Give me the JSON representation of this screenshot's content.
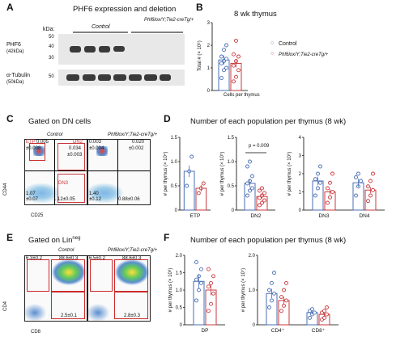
{
  "panels": {
    "A": {
      "letter": "A",
      "title": "PHF6 expression and deletion",
      "kda_label": "kDa:",
      "kda_ticks": [
        "50",
        "40",
        "30",
        "50"
      ],
      "group_control": "Control",
      "group_ko": "Phf6lox/Y;Tie2-creTg/+",
      "row1_label": "PHF6",
      "row1_sub": "(42kDa)",
      "row2_label": "α-Tubulin",
      "row2_sub": "(50kDa)"
    },
    "B": {
      "letter": "B",
      "title": "8 wk thymus",
      "ylabel": "Total # (× 10⁸)",
      "xlabel": "Cells per thymus",
      "legend_control": "Control",
      "legend_ko": "Phf6lox/Y;Tie2-creTg/+",
      "yticks": [
        "0",
        "1",
        "2",
        "3"
      ]
    },
    "C": {
      "letter": "C",
      "title": "Gated on DN cells",
      "ylabel": "CD44",
      "xlabel": "CD25",
      "sub_control": "Control",
      "sub_ko": "Phf6lox/Y;Tie2-creTg/+",
      "ticks": [
        "0",
        "10³",
        "10⁴",
        "10⁵"
      ],
      "quadrants": {
        "ETP": "ETP",
        "DN2": "DN2",
        "DN3": "DN3",
        "control": {
          "q1": "0.005",
          "q1b": "±0.008",
          "q2": "0.034",
          "q2b": "±0.003",
          "q3": "1.07",
          "q3b": "±0.07",
          "q4": "1.12±0.05"
        },
        "ko": {
          "q1": "0.003",
          "q1b": "±0.004",
          "q2": "0.020",
          "q2b": "±0.002",
          "q3": "1.40",
          "q3b": "±0.12",
          "q4": "0.88±0.06"
        }
      }
    },
    "D": {
      "letter": "D",
      "title": "Number of each population per thymus (8 wk)",
      "pvalue": "p = 0.009",
      "subplots": [
        {
          "ylabel": "# per thymus (× 10⁴)",
          "yticks": [
            "0",
            "0.5",
            "1.0",
            "1.5"
          ],
          "xlabels": [
            "ETP"
          ]
        },
        {
          "ylabel": "# per thymus (× 10⁵)",
          "yticks": [
            "0",
            "0.5",
            "1.0",
            "1.5"
          ],
          "xlabels": [
            "DN2"
          ]
        },
        {
          "ylabel": "# per thymus (× 10⁶)",
          "yticks": [
            "0",
            "1",
            "2",
            "3",
            "4"
          ],
          "xlabels": [
            "DN3",
            "DN4"
          ]
        }
      ]
    },
    "E": {
      "letter": "E",
      "title": "Gated on Lin",
      "title_sup": "neg",
      "ylabel": "CD4",
      "xlabel": "CD8",
      "sub_control": "Control",
      "sub_ko": "Phf6lox/Y;Tie2-creTg/+",
      "ticks": [
        "0",
        "10³",
        "10⁴",
        "10⁵"
      ],
      "control": {
        "tl": "6.3±0.2",
        "tr": "88.6±0.3",
        "br": "2.5±0.1"
      },
      "ko": {
        "tl": "6.5±0.2",
        "tr": "88.6±0.3",
        "br": "2.8±0.3"
      }
    },
    "F": {
      "letter": "F",
      "title": "Number of each population per thymus (8 wk)",
      "subplots": [
        {
          "ylabel": "# per thymus (× 10⁸)",
          "yticks": [
            "0",
            "0.5",
            "1.0",
            "1.5",
            "2.0"
          ],
          "xlabels": [
            "DP"
          ]
        },
        {
          "ylabel": "# per thymus (× 10⁷)",
          "yticks": [
            "0",
            "1.0",
            "2.0"
          ],
          "xlabels": [
            "CD4⁺",
            "CD8⁺"
          ]
        }
      ]
    }
  },
  "colors": {
    "control": "#4a6fb5",
    "ko": "#c8383c"
  },
  "chart_data": [
    {
      "type": "bar",
      "panel": "B",
      "categories": [
        "Cells per thymus"
      ],
      "series": [
        {
          "name": "Control",
          "values": [
            1.35
          ],
          "points": [
            0.55,
            0.9,
            1.0,
            1.2,
            1.3,
            1.4,
            1.5,
            1.8,
            2.0
          ]
        },
        {
          "name": "Phf6lox/Y;Tie2-creTg/+",
          "values": [
            1.2
          ],
          "points": [
            0.4,
            0.6,
            0.9,
            1.1,
            1.3,
            1.5,
            1.6,
            2.2
          ]
        }
      ],
      "ylim": [
        0,
        3
      ]
    },
    {
      "type": "bar",
      "panel": "D-ETP",
      "categories": [
        "ETP"
      ],
      "series": [
        {
          "name": "Control",
          "values": [
            0.8
          ],
          "points": [
            0.5,
            0.8,
            1.1
          ]
        },
        {
          "name": "Phf6lox/Y;Tie2-creTg/+",
          "values": [
            0.45
          ],
          "points": [
            0.35,
            0.45,
            0.55
          ]
        }
      ],
      "ylim": [
        0,
        1.5
      ]
    },
    {
      "type": "bar",
      "panel": "D-DN2",
      "categories": [
        "DN2"
      ],
      "series": [
        {
          "name": "Control",
          "values": [
            0.55
          ],
          "points": [
            0.3,
            0.4,
            0.45,
            0.55,
            0.6,
            0.7,
            0.9,
            1.0
          ]
        },
        {
          "name": "Phf6lox/Y;Tie2-creTg/+",
          "values": [
            0.28
          ],
          "points": [
            0.1,
            0.15,
            0.2,
            0.25,
            0.3,
            0.35,
            0.4,
            0.45
          ]
        }
      ],
      "ylim": [
        0,
        1.5
      ]
    },
    {
      "type": "bar",
      "panel": "D-DN3DN4",
      "categories": [
        "DN3",
        "DN4"
      ],
      "series": [
        {
          "name": "Control",
          "values": [
            1.6,
            1.5
          ],
          "points": [
            [
              0.8,
              1.2,
              1.5,
              1.7,
              2.0,
              2.4
            ],
            [
              0.8,
              1.3,
              1.6,
              1.8,
              2.0
            ]
          ]
        },
        {
          "name": "Phf6lox/Y;Tie2-creTg/+",
          "values": [
            1.0,
            1.1
          ],
          "points": [
            [
              0.4,
              0.7,
              1.0,
              1.2,
              1.5,
              2.0
            ],
            [
              0.5,
              0.8,
              1.1,
              1.3,
              1.6,
              2.0
            ]
          ]
        }
      ],
      "ylim": [
        0,
        4
      ]
    },
    {
      "type": "bar",
      "panel": "F-DP",
      "categories": [
        "DP"
      ],
      "series": [
        {
          "name": "Control",
          "values": [
            1.25
          ],
          "points": [
            0.7,
            1.0,
            1.2,
            1.3,
            1.4,
            1.6,
            1.8
          ]
        },
        {
          "name": "Phf6lox/Y;Tie2-creTg/+",
          "values": [
            1.0
          ],
          "points": [
            0.4,
            0.6,
            0.9,
            1.1,
            1.2,
            1.4,
            1.6
          ]
        }
      ],
      "ylim": [
        0,
        2
      ]
    },
    {
      "type": "bar",
      "panel": "F-CD4CD8",
      "categories": [
        "CD4⁺",
        "CD8⁺"
      ],
      "series": [
        {
          "name": "Control",
          "values": [
            0.9,
            0.35
          ],
          "points": [
            [
              0.5,
              0.7,
              0.9,
              1.0,
              1.2,
              1.5
            ],
            [
              0.2,
              0.3,
              0.35,
              0.4,
              0.45
            ]
          ]
        },
        {
          "name": "Phf6lox/Y;Tie2-creTg/+",
          "values": [
            0.7,
            0.3
          ],
          "points": [
            [
              0.4,
              0.55,
              0.7,
              0.8,
              1.0,
              1.2
            ],
            [
              0.15,
              0.2,
              0.3,
              0.35,
              0.4,
              0.5
            ]
          ]
        }
      ],
      "ylim": [
        0,
        2
      ]
    }
  ]
}
